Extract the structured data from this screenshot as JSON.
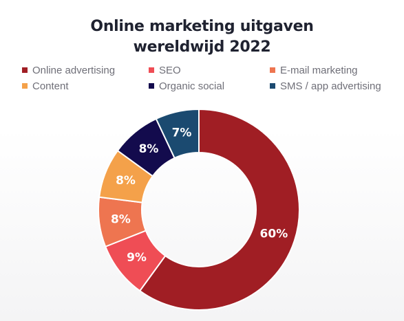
{
  "title_line1": "Online marketing uitgaven",
  "title_line2": "wereldwijd 2022",
  "chart_data": {
    "type": "pie",
    "donut": true,
    "title": "Online marketing uitgaven wereldwijd 2022",
    "legend_position": "top",
    "categories": [
      "Online advertising",
      "SEO",
      "E-mail marketing",
      "Content",
      "Organic social",
      "SMS / app advertising"
    ],
    "values": [
      60,
      9,
      8,
      8,
      8,
      7
    ],
    "labels": [
      "60%",
      "9%",
      "8%",
      "8%",
      "8%",
      "7%"
    ],
    "colors": [
      "#a01e24",
      "#ef4d55",
      "#ee7550",
      "#f4a14a",
      "#130b4d",
      "#1b4a70"
    ]
  }
}
